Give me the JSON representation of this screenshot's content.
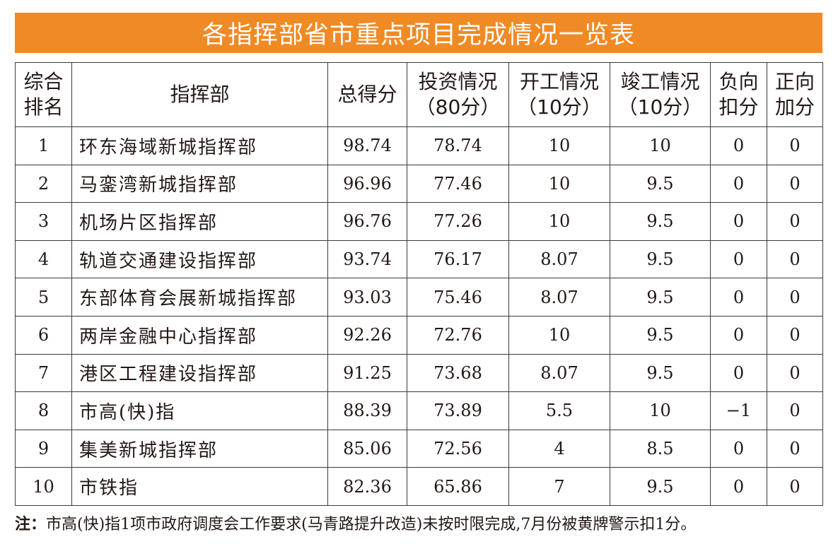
{
  "title": "各指挥部省市重点项目完成情况一览表",
  "headers": [
    {
      "line1": "综合",
      "line2": "排名"
    },
    {
      "line1": "指挥部",
      "line2": ""
    },
    {
      "line1": "总得分",
      "line2": ""
    },
    {
      "line1": "投资情况",
      "line2": "（80分）"
    },
    {
      "line1": "开工情况",
      "line2": "（10分）"
    },
    {
      "line1": "竣工情况",
      "line2": "（10分）"
    },
    {
      "line1": "负向",
      "line2": "扣分"
    },
    {
      "line1": "正向",
      "line2": "加分"
    }
  ],
  "rows": [
    {
      "rank": "1",
      "name": "环东海域新城指挥部",
      "total": "98.74",
      "invest": "78.74",
      "start": "10",
      "complete": "10",
      "minus": "0",
      "plus": "0"
    },
    {
      "rank": "2",
      "name": "马銮湾新城指挥部",
      "total": "96.96",
      "invest": "77.46",
      "start": "10",
      "complete": "9.5",
      "minus": "0",
      "plus": "0"
    },
    {
      "rank": "3",
      "name": "机场片区指挥部",
      "total": "96.76",
      "invest": "77.26",
      "start": "10",
      "complete": "9.5",
      "minus": "0",
      "plus": "0"
    },
    {
      "rank": "4",
      "name": "轨道交通建设指挥部",
      "total": "93.74",
      "invest": "76.17",
      "start": "8.07",
      "complete": "9.5",
      "minus": "0",
      "plus": "0"
    },
    {
      "rank": "5",
      "name": "东部体育会展新城指挥部",
      "total": "93.03",
      "invest": "75.46",
      "start": "8.07",
      "complete": "9.5",
      "minus": "0",
      "plus": "0"
    },
    {
      "rank": "6",
      "name": "两岸金融中心指挥部",
      "total": "92.26",
      "invest": "72.76",
      "start": "10",
      "complete": "9.5",
      "minus": "0",
      "plus": "0"
    },
    {
      "rank": "7",
      "name": "港区工程建设指挥部",
      "total": "91.25",
      "invest": "73.68",
      "start": "8.07",
      "complete": "9.5",
      "minus": "0",
      "plus": "0"
    },
    {
      "rank": "8",
      "name": "市高(快)指",
      "total": "88.39",
      "invest": "73.89",
      "start": "5.5",
      "complete": "10",
      "minus": "−1",
      "plus": "0"
    },
    {
      "rank": "9",
      "name": "集美新城指挥部",
      "total": "85.06",
      "invest": "72.56",
      "start": "4",
      "complete": "8.5",
      "minus": "0",
      "plus": "0"
    },
    {
      "rank": "10",
      "name": "市铁指",
      "total": "82.36",
      "invest": "65.86",
      "start": "7",
      "complete": "9.5",
      "minus": "0",
      "plus": "0"
    }
  ],
  "note": {
    "lead": "注：",
    "text": "市高(快)指1项市政府调度会工作要求(马青路提升改造)未按时限完成,7月份被黄牌警示扣1分。"
  },
  "colors": {
    "title_bg": "#f08a24",
    "title_text": "#ffffff",
    "border": "#3a3a3a"
  }
}
